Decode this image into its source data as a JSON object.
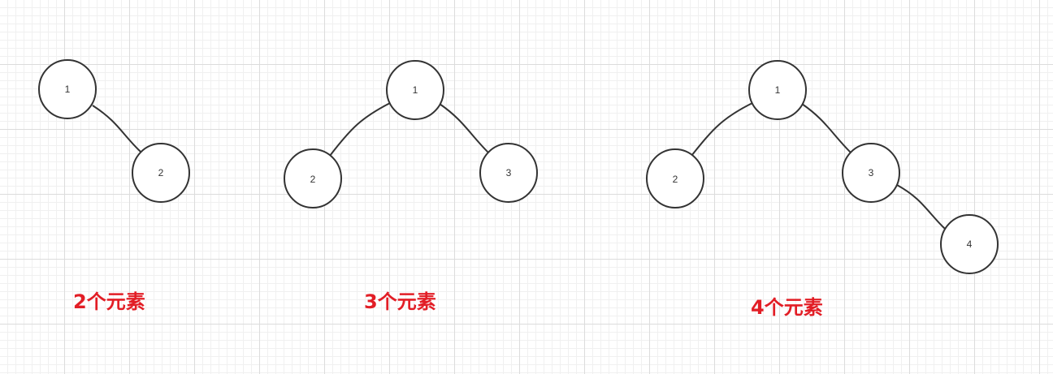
{
  "colors": {
    "caption": "#e21e26",
    "stroke": "#333333"
  },
  "diagrams": [
    {
      "caption": "2个元素",
      "nodes": [
        "1",
        "2"
      ]
    },
    {
      "caption": "3个元素",
      "nodes": [
        "1",
        "2",
        "3"
      ]
    },
    {
      "caption": "4个元素",
      "nodes": [
        "1",
        "2",
        "3",
        "4"
      ]
    }
  ]
}
